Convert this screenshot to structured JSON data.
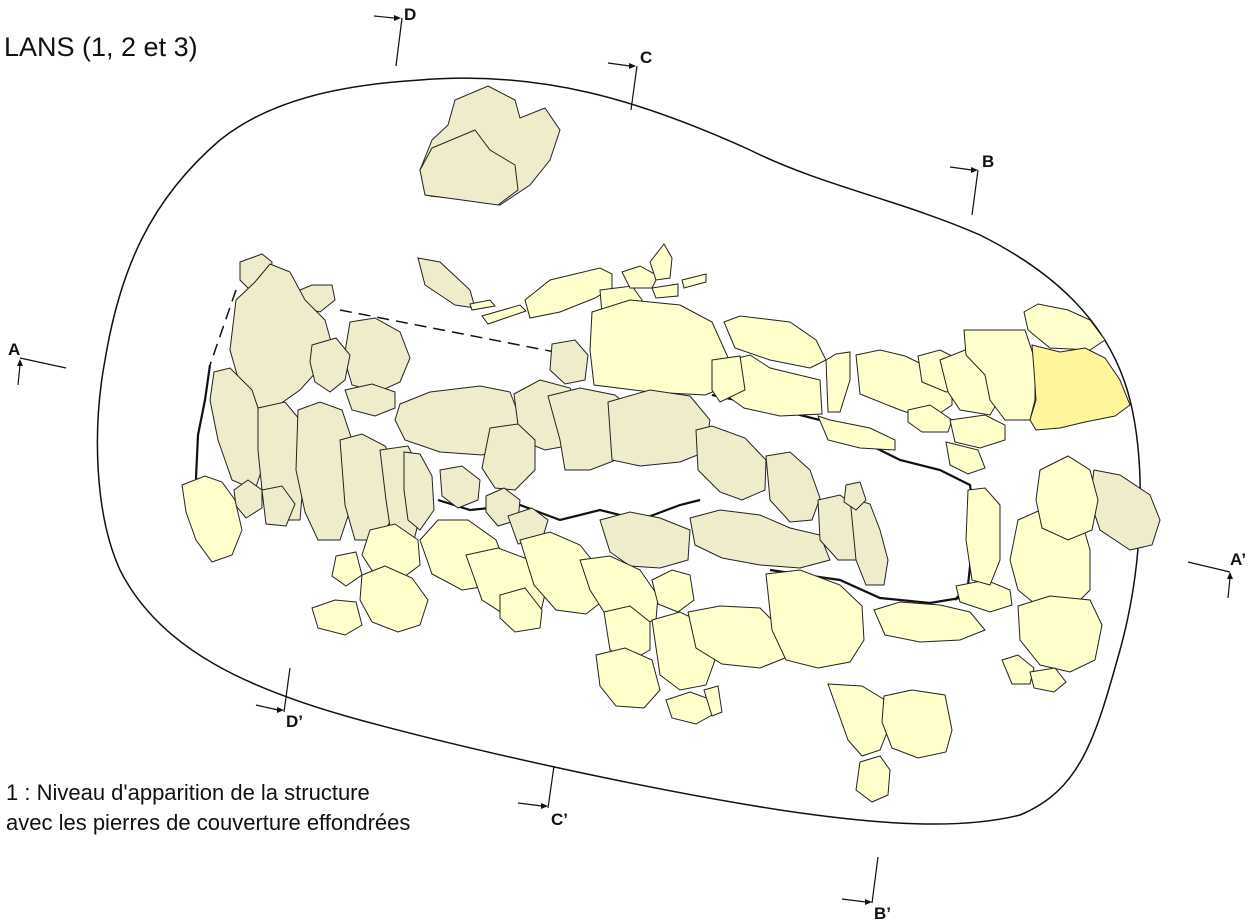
{
  "title": "LANS (1, 2 et 3)",
  "legend": {
    "line1": "1 : Niveau d'apparition de la structure",
    "line2": "avec les pierres de couverture effondrées"
  },
  "section_markers": {
    "A": "A",
    "A_prime": "A’",
    "B": "B",
    "B_prime": "B’",
    "C": "C",
    "C_prime": "C’",
    "D": "D",
    "D_prime": "D’"
  },
  "colors": {
    "stone_pale": "#ffffcc",
    "stone_grey": "#efeccb",
    "stone_highlight": "#fff59b",
    "outline": "#111111"
  }
}
